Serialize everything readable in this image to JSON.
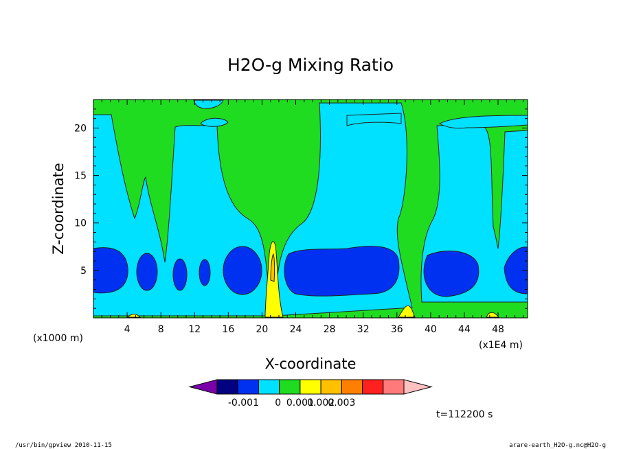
{
  "chart_data": {
    "type": "contour",
    "title": "H2O-g Mixing Ratio",
    "xlabel": "X-coordinate",
    "ylabel": "Z-coordinate",
    "x_unit": "(x1E4 m)",
    "y_unit": "(x1000 m)",
    "xlim": [
      0,
      51.5
    ],
    "ylim": [
      0,
      23
    ],
    "x_ticks": [
      4,
      8,
      12,
      16,
      20,
      24,
      28,
      32,
      36,
      40,
      44,
      48
    ],
    "y_ticks": [
      5,
      10,
      15,
      20
    ],
    "time_label": "t=112200 s",
    "colorbar": {
      "colors": [
        "#7a00a8",
        "#000080",
        "#0030f0",
        "#00e0ff",
        "#20dc20",
        "#ffff00",
        "#ffc000",
        "#ff8000",
        "#ff2020",
        "#ff7a7a",
        "#ffc0c0"
      ],
      "tick_labels": [
        "-0.001",
        "0",
        "0.001",
        "0.002",
        "0.003"
      ]
    },
    "colors": {
      "background_level": "#20dc20",
      "low_level": "#00e0ff",
      "lowest_level": "#0030f0",
      "high_level": "#ffff00",
      "highest_level": "#ffc000"
    }
  },
  "footer": {
    "left": "/usr/bin/gpview   2010-11-15",
    "right": "arare-earth_H2O-g.nc@H2O-g"
  }
}
